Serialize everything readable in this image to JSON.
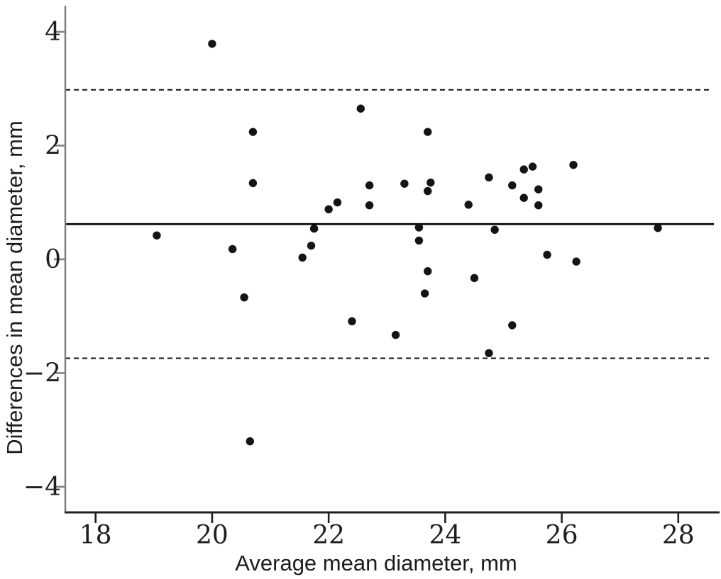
{
  "chart_data": {
    "type": "scatter",
    "title": "",
    "xlabel": "Average mean diameter, mm",
    "ylabel": "Differences in mean diameter, mm",
    "xlim": [
      17.48,
      28.66
    ],
    "ylim": [
      -4.45,
      4.46
    ],
    "x_ticks": [
      18,
      20,
      22,
      24,
      26,
      28
    ],
    "x_tick_labels": [
      "18",
      "20",
      "22",
      "24",
      "26",
      "28"
    ],
    "y_ticks": [
      4,
      2,
      0,
      -2,
      -4
    ],
    "y_tick_labels": [
      "4",
      "2",
      "0",
      "−2",
      "−4"
    ],
    "grid": false,
    "legend": null,
    "marker_color": "#141414",
    "marker_radius_px": 5.7,
    "mean_line": 0.62,
    "upper_limit_line": 2.98,
    "lower_limit_line": -1.74,
    "mean_line_style": "solid",
    "limit_line_style": "dashed",
    "points": [
      [
        19.05,
        0.42
      ],
      [
        20.0,
        3.79
      ],
      [
        20.35,
        0.18
      ],
      [
        20.55,
        -0.67
      ],
      [
        20.65,
        -3.2
      ],
      [
        20.7,
        2.24
      ],
      [
        20.7,
        1.34
      ],
      [
        21.55,
        0.03
      ],
      [
        21.7,
        0.24
      ],
      [
        21.75,
        0.54
      ],
      [
        22.0,
        0.88
      ],
      [
        22.15,
        1.0
      ],
      [
        22.4,
        -1.09
      ],
      [
        22.55,
        2.65
      ],
      [
        22.7,
        1.3
      ],
      [
        22.7,
        0.95
      ],
      [
        23.15,
        -1.33
      ],
      [
        23.3,
        1.33
      ],
      [
        23.55,
        0.56
      ],
      [
        23.55,
        0.33
      ],
      [
        23.65,
        -0.6
      ],
      [
        23.7,
        2.24
      ],
      [
        23.7,
        -0.21
      ],
      [
        23.75,
        1.35
      ],
      [
        23.7,
        1.2
      ],
      [
        24.4,
        0.96
      ],
      [
        24.5,
        -0.33
      ],
      [
        24.75,
        1.44
      ],
      [
        24.75,
        -1.65
      ],
      [
        24.85,
        0.52
      ],
      [
        25.15,
        1.3
      ],
      [
        25.15,
        -1.16
      ],
      [
        25.35,
        1.58
      ],
      [
        25.35,
        1.08
      ],
      [
        25.5,
        1.63
      ],
      [
        25.6,
        1.23
      ],
      [
        25.6,
        0.95
      ],
      [
        25.75,
        0.08
      ],
      [
        26.2,
        1.66
      ],
      [
        26.25,
        -0.04
      ],
      [
        27.65,
        0.55
      ]
    ]
  },
  "style": {
    "background": "#ffffff",
    "y_axis_color": "#828282",
    "x_axis_color": "#1f1f1f",
    "mean_line_color": "#000000",
    "limit_line_color": "#111111",
    "tick_label_color": "#1e1e1e"
  }
}
